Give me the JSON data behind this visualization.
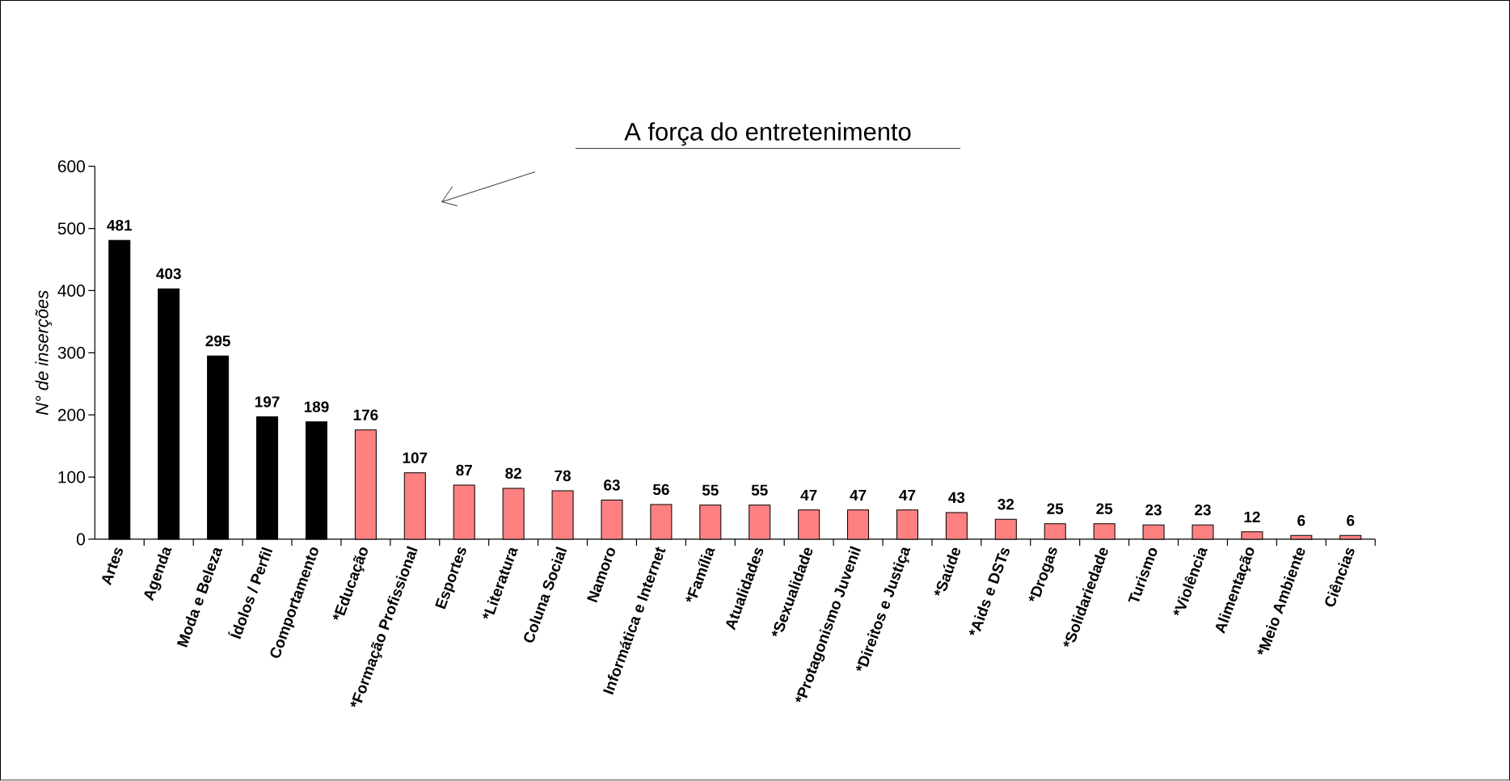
{
  "chart_data": {
    "type": "bar",
    "title": "A força do entretenimento",
    "ylabel": "N° de inserções",
    "categories": [
      "Artes",
      "Agenda",
      "Moda e Beleza",
      "Ídolos / Perfil",
      "Comportamento",
      "*Educação",
      "*Formação Profissional",
      "Esportes",
      "*Literatura",
      "Coluna Social",
      "Namoro",
      "Informática e Internet",
      "*Família",
      "Atualidades",
      "*Sexualidade",
      "*Protagonismo Juvenil",
      "*Direitos e Justiça",
      "*Saúde",
      "*Aids e DSTs",
      "*Drogas",
      "*Solidariedade",
      "Turismo",
      "*Violência",
      "Alimentação",
      "*Meio Ambiente",
      "Ciências"
    ],
    "values": [
      481,
      403,
      295,
      197,
      189,
      176,
      107,
      87,
      82,
      78,
      63,
      56,
      55,
      55,
      47,
      47,
      47,
      43,
      32,
      25,
      25,
      23,
      23,
      12,
      6,
      6
    ],
    "colors": [
      "#000000",
      "#000000",
      "#000000",
      "#000000",
      "#000000",
      "#ff8080",
      "#ff8080",
      "#ff8080",
      "#ff8080",
      "#ff8080",
      "#ff8080",
      "#ff8080",
      "#ff8080",
      "#ff8080",
      "#ff8080",
      "#ff8080",
      "#ff8080",
      "#ff8080",
      "#ff8080",
      "#ff8080",
      "#ff8080",
      "#ff8080",
      "#ff8080",
      "#ff8080",
      "#ff8080",
      "#ff8080"
    ],
    "ylim": [
      0,
      600
    ],
    "yticks": [
      0,
      100,
      200,
      300,
      400,
      500,
      600
    ],
    "data_labels": true
  }
}
